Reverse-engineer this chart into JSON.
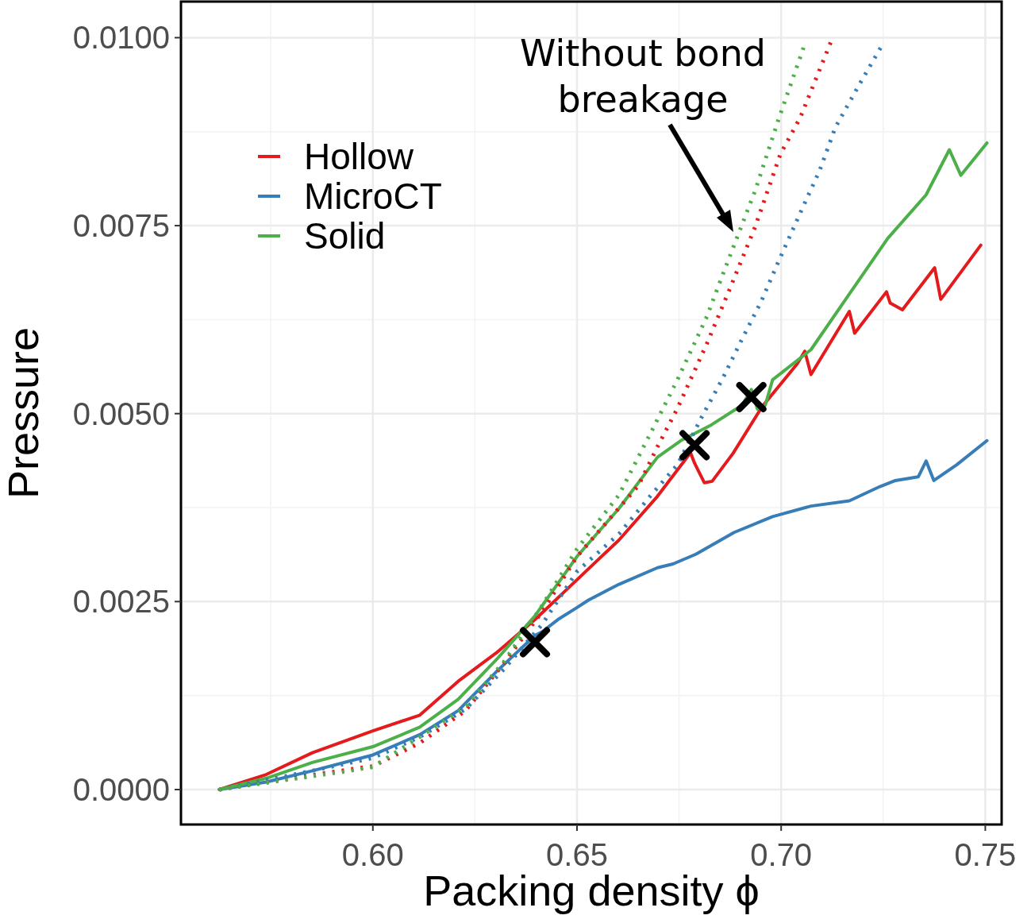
{
  "chart_data": {
    "type": "line",
    "xlabel": "Packing density ϕ",
    "ylabel": "Pressure",
    "xlim": [
      0.553,
      0.754
    ],
    "ylim": [
      -0.000465,
      0.01048
    ],
    "xticks": [
      {
        "value": 0.6,
        "label": "0.60"
      },
      {
        "value": 0.65,
        "label": "0.65"
      },
      {
        "value": 0.7,
        "label": "0.70"
      },
      {
        "value": 0.75,
        "label": "0.75"
      }
    ],
    "yticks": [
      {
        "value": 0,
        "label": "0.0000"
      },
      {
        "value": 0.0025,
        "label": "0.0025"
      },
      {
        "value": 0.005,
        "label": "0.0050"
      },
      {
        "value": 0.0075,
        "label": "0.0075"
      },
      {
        "value": 0.01,
        "label": "0.0100"
      }
    ],
    "grid": true,
    "legend": "top left",
    "annotations": [
      "Without bond\nbreakage"
    ],
    "series": [
      {
        "name": "Hollow",
        "color": "#e41a1c",
        "line_style": "solid",
        "x": [
          0.5624,
          0.5739,
          0.5852,
          0.6,
          0.6115,
          0.6209,
          0.6303,
          0.6397,
          0.65,
          0.6603,
          0.6697,
          0.6778,
          0.6788,
          0.6812,
          0.6831,
          0.6882,
          0.6953,
          0.7039,
          0.7058,
          0.7073,
          0.7167,
          0.718,
          0.7258,
          0.7267,
          0.7297,
          0.7376,
          0.7391,
          0.7489
        ],
        "values": [
          0,
          0.0002,
          0.00049,
          0.00078,
          0.00099,
          0.00144,
          0.00182,
          0.00226,
          0.00279,
          0.00332,
          0.0039,
          0.00448,
          0.00434,
          0.00408,
          0.0041,
          0.00447,
          0.00509,
          0.00566,
          0.00583,
          0.00552,
          0.00636,
          0.00607,
          0.00662,
          0.00647,
          0.00638,
          0.00694,
          0.00652,
          0.00724
        ]
      },
      {
        "name": "MicroCT",
        "color": "#377eb8",
        "line_style": "solid",
        "x": [
          0.5624,
          0.5739,
          0.5852,
          0.6,
          0.6115,
          0.6209,
          0.6303,
          0.6397,
          0.6415,
          0.6453,
          0.65,
          0.6528,
          0.6603,
          0.6697,
          0.6735,
          0.6791,
          0.6885,
          0.6979,
          0.7073,
          0.7167,
          0.7242,
          0.728,
          0.7336,
          0.7355,
          0.7374,
          0.743,
          0.7504
        ],
        "values": [
          0,
          0.0001,
          0.00025,
          0.00046,
          0.00073,
          0.00105,
          0.00157,
          0.00205,
          0.0021,
          0.00226,
          0.00242,
          0.00252,
          0.00273,
          0.00295,
          0.003,
          0.00313,
          0.00342,
          0.00363,
          0.00377,
          0.00384,
          0.00403,
          0.00411,
          0.00416,
          0.00437,
          0.00411,
          0.00432,
          0.00464
        ]
      },
      {
        "name": "Solid",
        "color": "#4daf4a",
        "line_style": "solid",
        "x": [
          0.5624,
          0.5739,
          0.5852,
          0.6,
          0.6115,
          0.6209,
          0.6303,
          0.6397,
          0.65,
          0.6603,
          0.6697,
          0.6754,
          0.6829,
          0.6904,
          0.6927,
          0.6942,
          0.6961,
          0.6979,
          0.7073,
          0.7167,
          0.7261,
          0.7355,
          0.7412,
          0.744,
          0.7504
        ],
        "values": [
          0,
          0.00015,
          0.00036,
          0.00057,
          0.00083,
          0.0012,
          0.00173,
          0.00231,
          0.0031,
          0.00374,
          0.00442,
          0.00464,
          0.00485,
          0.00511,
          0.00532,
          0.00506,
          0.00511,
          0.00545,
          0.00585,
          0.00659,
          0.00733,
          0.00791,
          0.00851,
          0.00817,
          0.0086
        ]
      },
      {
        "color": "#e41a1c",
        "line_style": "dotted",
        "x": [
          0.5624,
          0.5945,
          0.6,
          0.6115,
          0.6227,
          0.6321,
          0.6415,
          0.65,
          0.665,
          0.6699,
          0.6746,
          0.6818,
          0.6872,
          0.6936,
          0.6998,
          0.7047,
          0.7126
        ],
        "values": [
          0,
          0.00027,
          0.00031,
          0.00062,
          0.00105,
          0.00168,
          0.00237,
          0.0031,
          0.00404,
          0.00458,
          0.00507,
          0.00593,
          0.00663,
          0.00748,
          0.00845,
          0.00894,
          0.01
        ]
      },
      {
        "color": "#377eb8",
        "line_style": "dotted",
        "x": [
          0.5624,
          0.5852,
          0.6,
          0.6115,
          0.6227,
          0.6321,
          0.6415,
          0.65,
          0.6603,
          0.6682,
          0.6746,
          0.6808,
          0.6857,
          0.6904,
          0.6951,
          0.6994,
          0.7051,
          0.7094,
          0.7133,
          0.7197,
          0.7244
        ],
        "values": [
          0,
          0.00025,
          0.00042,
          0.0007,
          0.00107,
          0.0016,
          0.0022,
          0.0029,
          0.0034,
          0.00392,
          0.00432,
          0.00498,
          0.00547,
          0.00599,
          0.00649,
          0.00703,
          0.00772,
          0.00823,
          0.00881,
          0.00943,
          0.00987
        ]
      },
      {
        "color": "#4daf4a",
        "line_style": "dotted",
        "x": [
          0.5624,
          0.5945,
          0.6,
          0.6115,
          0.6227,
          0.6321,
          0.6415,
          0.65,
          0.6603,
          0.6682,
          0.6746,
          0.6818,
          0.6857,
          0.6936,
          0.6994,
          0.7055
        ],
        "values": [
          0,
          0.00025,
          0.0003,
          0.0007,
          0.0011,
          0.0017,
          0.00245,
          0.0032,
          0.00392,
          0.00476,
          0.00545,
          0.00629,
          0.00685,
          0.00796,
          0.00892,
          0.00987
        ]
      },
      {
        "type": "scatter",
        "marker": "cross",
        "color": "#000000",
        "x": [
          0.6397,
          0.6788,
          0.6927
        ],
        "values": [
          0.00196,
          0.00458,
          0.00522
        ]
      }
    ]
  }
}
